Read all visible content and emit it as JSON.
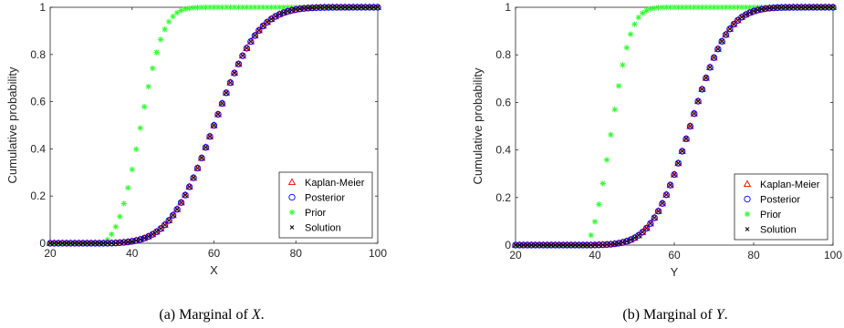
{
  "captions": [
    {
      "prefix": "(a) Marginal of ",
      "variable": "X",
      "suffix": "."
    },
    {
      "prefix": "(b) Marginal of ",
      "variable": "Y",
      "suffix": "."
    }
  ],
  "chart_data": [
    {
      "type": "scatter",
      "xlabel": "X",
      "ylabel": "Cumulative probability",
      "xlim": [
        20,
        100
      ],
      "ylim": [
        0,
        1
      ],
      "xticks": [
        20,
        40,
        60,
        80,
        100
      ],
      "yticks": [
        0,
        0.2,
        0.4,
        0.6,
        0.8,
        1
      ],
      "grid": false,
      "legend": "bottom-right",
      "x_step": 1,
      "series": [
        {
          "name": "Kaplan-Meier",
          "marker": "triangle",
          "color": "#ff0000",
          "x_range": [
            20,
            100
          ],
          "cdf_normal": {
            "mean": 60,
            "sd": 8.5,
            "from": 34
          }
        },
        {
          "name": "Posterior",
          "marker": "circle",
          "color": "#0000ff",
          "x_range": [
            20,
            100
          ],
          "cdf_normal": {
            "mean": 60,
            "sd": 8.5,
            "from": 34
          }
        },
        {
          "name": "Prior",
          "marker": "asterisk",
          "color": "#33ff33",
          "x_range": [
            20,
            100
          ],
          "cdf_normal": {
            "mean": 42,
            "sd": 4.5,
            "from": 33
          }
        },
        {
          "name": "Solution",
          "marker": "x",
          "color": "#000000",
          "x_range": [
            20,
            100
          ],
          "cdf_normal": {
            "mean": 60,
            "sd": 8.5,
            "from": 34
          }
        }
      ]
    },
    {
      "type": "scatter",
      "xlabel": "Y",
      "ylabel": "Cumulative probability",
      "xlim": [
        20,
        100
      ],
      "ylim": [
        0,
        1
      ],
      "xticks": [
        20,
        40,
        60,
        80,
        100
      ],
      "yticks": [
        0,
        0.2,
        0.4,
        0.6,
        0.8,
        1
      ],
      "grid": false,
      "legend": "bottom-right",
      "x_step": 1,
      "series": [
        {
          "name": "Kaplan-Meier",
          "marker": "triangle",
          "color": "#ff0000",
          "x_range": [
            20,
            100
          ],
          "cdf_normal": {
            "mean": 64,
            "sd": 7.5,
            "from": 39
          }
        },
        {
          "name": "Posterior",
          "marker": "circle",
          "color": "#0000ff",
          "x_range": [
            20,
            100
          ],
          "cdf_normal": {
            "mean": 64,
            "sd": 7.5,
            "from": 39
          }
        },
        {
          "name": "Prior",
          "marker": "asterisk",
          "color": "#33ff33",
          "x_range": [
            20,
            100
          ],
          "cdf_normal": {
            "mean": 44,
            "sd": 4,
            "from": 38
          }
        },
        {
          "name": "Solution",
          "marker": "x",
          "color": "#000000",
          "x_range": [
            20,
            100
          ],
          "cdf_normal": {
            "mean": 64,
            "sd": 7.5,
            "from": 39
          }
        }
      ]
    }
  ]
}
